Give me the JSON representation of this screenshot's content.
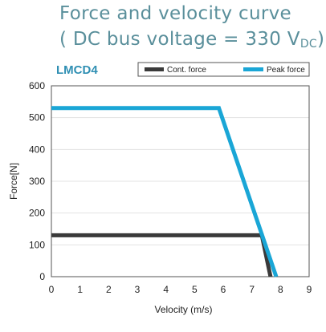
{
  "title": {
    "line1": "Force and velocity curve",
    "line2_prefix": "( DC bus voltage = 330 V",
    "line2_sub": "DC",
    "line2_suffix": ")"
  },
  "model": "LMCD4",
  "colors": {
    "title": "#5a8f9b",
    "model": "#2f8fb3",
    "cont": "#3a3a3a",
    "peak": "#1aa6d6",
    "grid": "#e3e3e3"
  },
  "chart_data": {
    "type": "line",
    "xlabel": "Velocity (m/s)",
    "ylabel": "Force[N]",
    "xlim": [
      0,
      9
    ],
    "ylim": [
      0,
      600
    ],
    "x_ticks": [
      "0",
      "1",
      "2",
      "3",
      "4",
      "5",
      "6",
      "7",
      "8",
      "9"
    ],
    "y_ticks": [
      "0",
      "100",
      "200",
      "300",
      "400",
      "500",
      "600"
    ],
    "grid": true,
    "legend_placement": "top",
    "series": [
      {
        "name": "Cont. force",
        "color": "#3a3a3a",
        "points": [
          [
            0,
            130
          ],
          [
            7.35,
            130
          ],
          [
            7.65,
            0
          ]
        ]
      },
      {
        "name": "Peak force",
        "color": "#1aa6d6",
        "points": [
          [
            0,
            530
          ],
          [
            5.85,
            530
          ],
          [
            7.85,
            0
          ]
        ]
      }
    ]
  }
}
